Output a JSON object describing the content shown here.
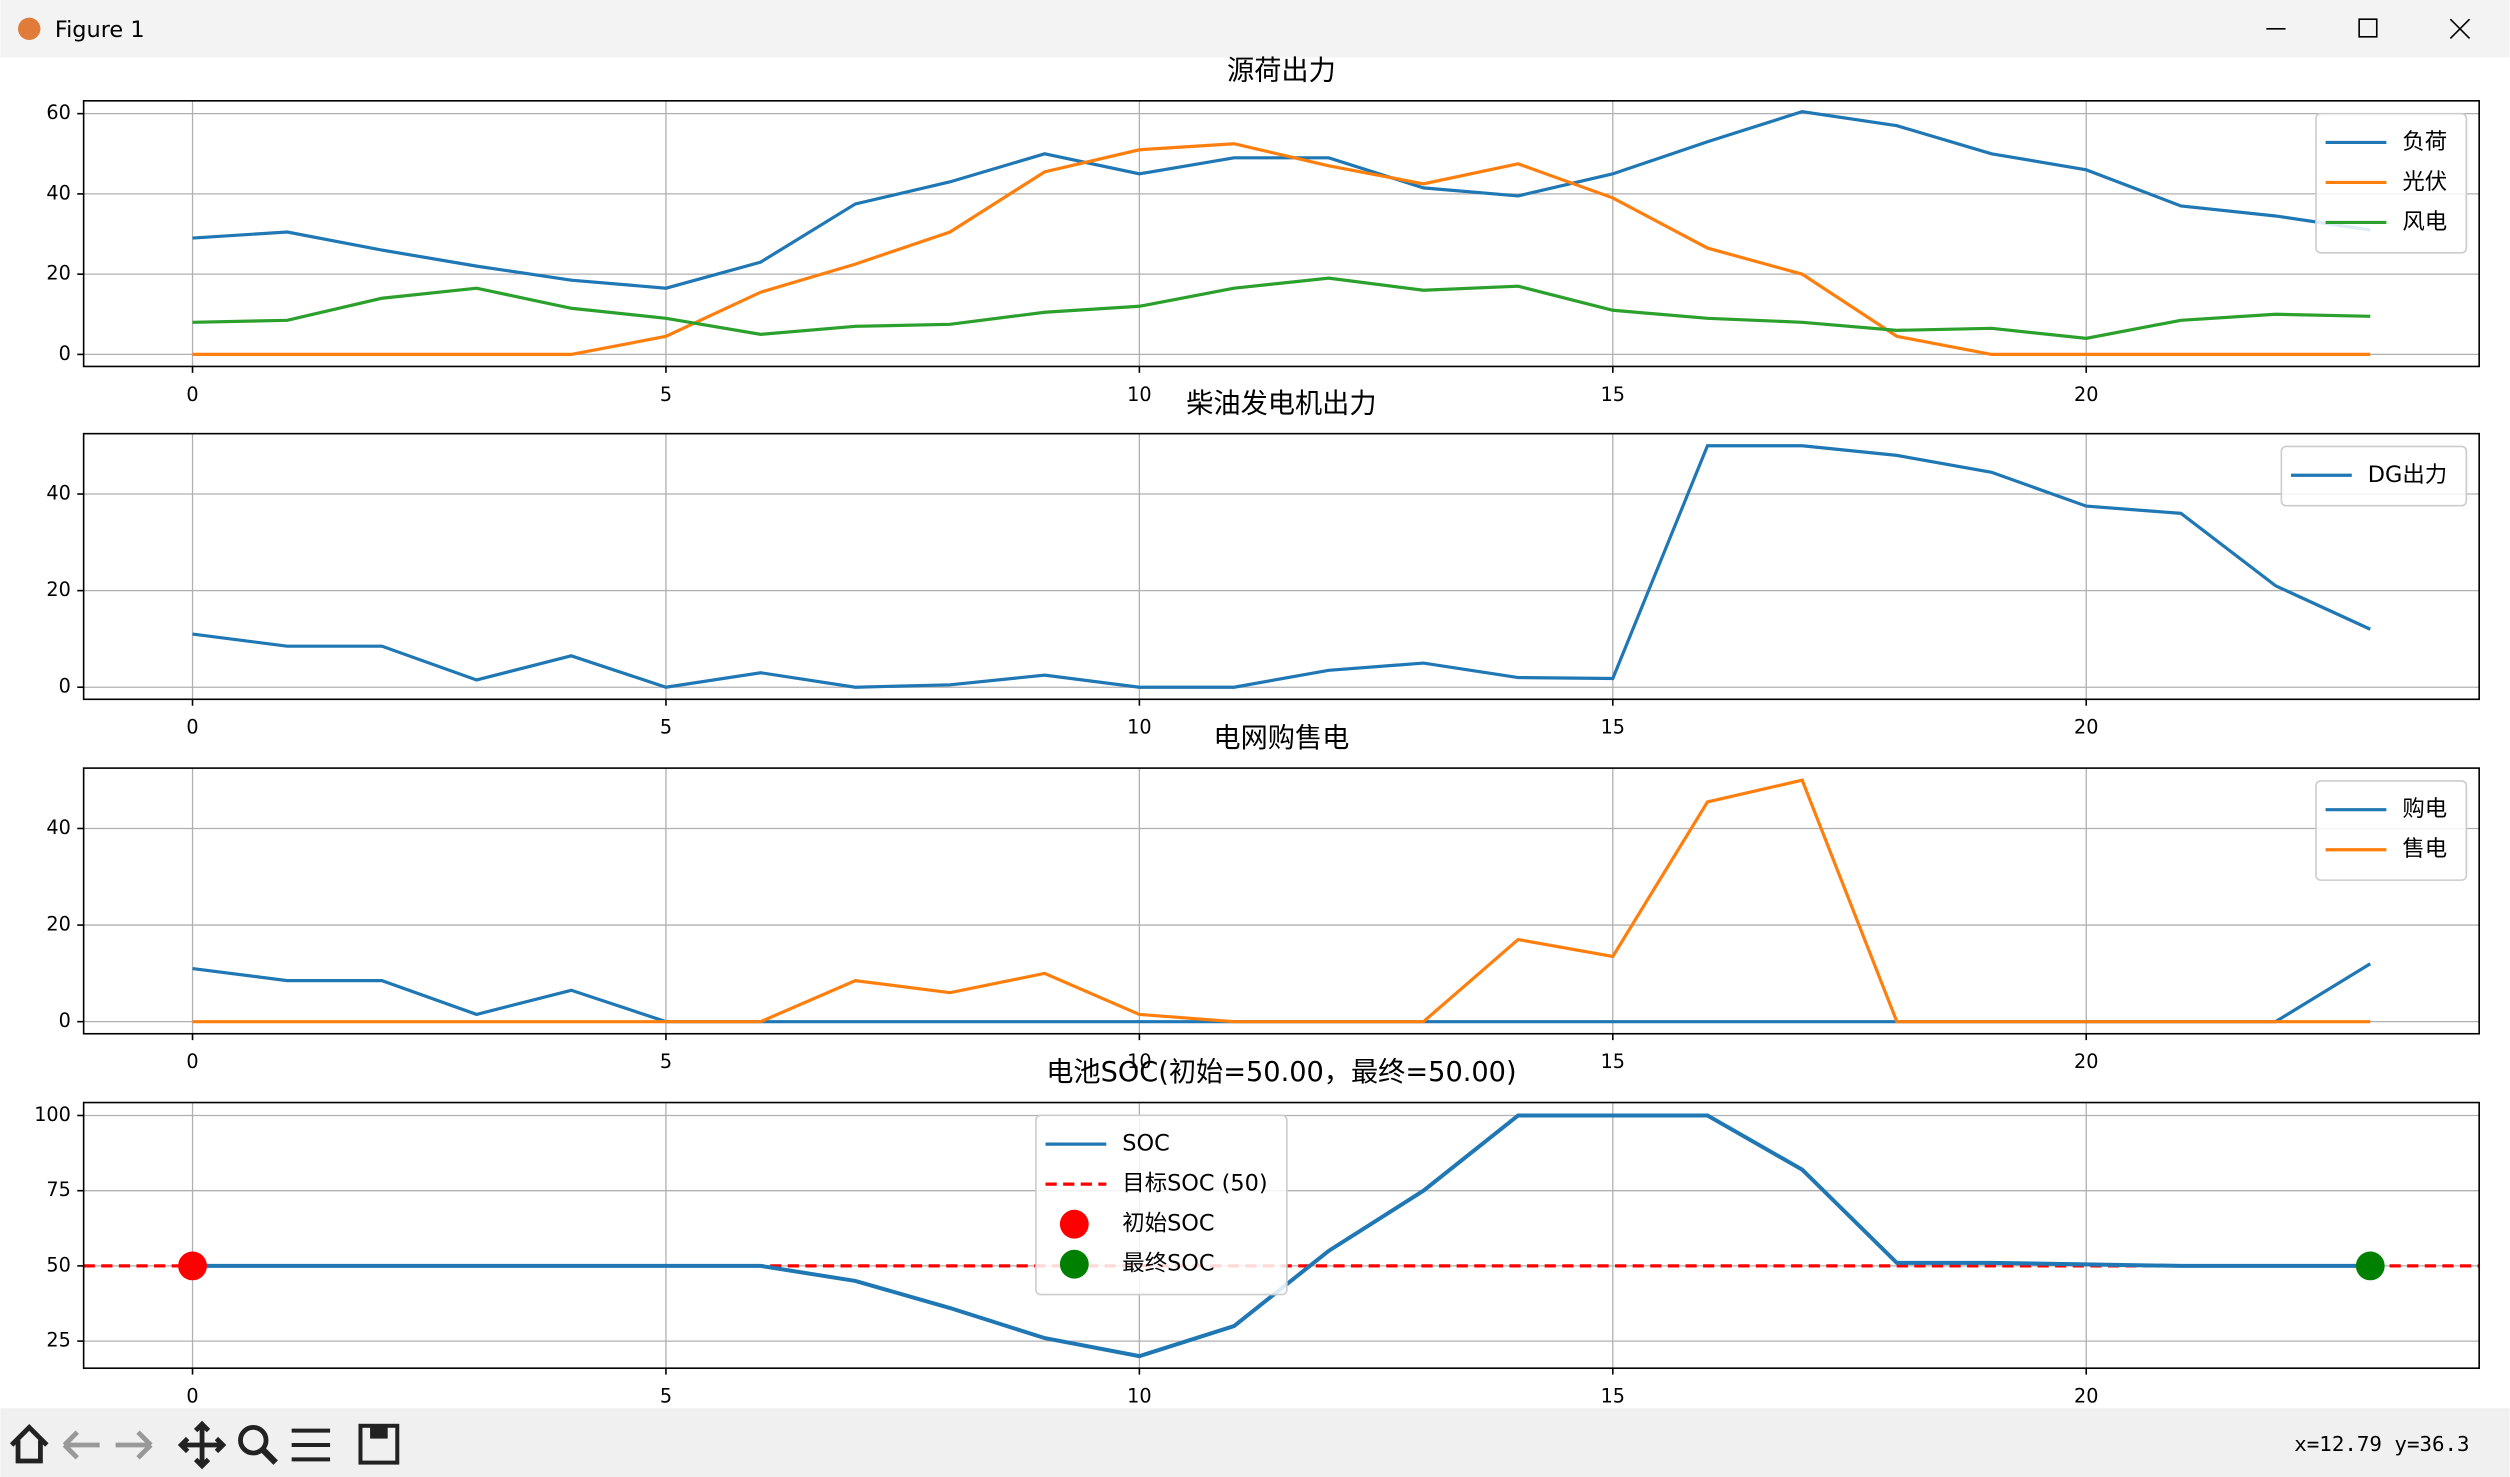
{
  "window": {
    "title": "Figure 1",
    "status": "x=12.79 y=36.3"
  },
  "chart_data": [
    {
      "type": "line",
      "title": "源荷出力",
      "legend": "upper right",
      "grid": true,
      "x": [
        0,
        1,
        2,
        3,
        4,
        5,
        6,
        7,
        8,
        9,
        10,
        11,
        12,
        13,
        14,
        15,
        16,
        17,
        18,
        19,
        20,
        21,
        22,
        23
      ],
      "xlim": [
        -1.15,
        24.15
      ],
      "xticks": [
        0,
        5,
        10,
        15,
        20
      ],
      "ylim": [
        -3,
        63.2
      ],
      "yticks": [
        0,
        20,
        40,
        60
      ],
      "series": [
        {
          "name": "负荷",
          "color": "#1f77b4",
          "values": [
            29,
            30.5,
            26,
            22,
            18.5,
            16.5,
            23,
            37.5,
            43,
            50,
            45,
            49,
            49,
            41.5,
            39.5,
            45,
            53,
            60.5,
            57,
            50,
            46,
            37,
            34.5,
            31
          ]
        },
        {
          "name": "光伏",
          "color": "#ff7f0e",
          "values": [
            0,
            0,
            0,
            0,
            0,
            4.5,
            15.5,
            22.5,
            30.5,
            45.5,
            51,
            52.5,
            47,
            42.5,
            47.5,
            39,
            26.5,
            20,
            4.5,
            0,
            0,
            0,
            0,
            0
          ]
        },
        {
          "name": "风电",
          "color": "#2ca02c",
          "values": [
            8,
            8.5,
            14,
            16.5,
            11.5,
            9,
            5,
            7,
            7.5,
            10.5,
            12,
            16.5,
            19,
            16,
            17,
            11,
            9,
            8,
            6,
            6.5,
            4,
            8.5,
            10,
            9.5
          ]
        }
      ]
    },
    {
      "type": "line",
      "title": "柴油发电机出力",
      "legend": "upper right",
      "grid": true,
      "x": [
        0,
        1,
        2,
        3,
        4,
        5,
        6,
        7,
        8,
        9,
        10,
        11,
        12,
        13,
        14,
        15,
        16,
        17,
        18,
        19,
        20,
        21,
        22,
        23
      ],
      "xlim": [
        -1.15,
        24.15
      ],
      "xticks": [
        0,
        5,
        10,
        15,
        20
      ],
      "ylim": [
        -2.5,
        52.5
      ],
      "yticks": [
        0,
        20,
        40
      ],
      "series": [
        {
          "name": "DG出力",
          "color": "#1f77b4",
          "values": [
            11,
            8.5,
            8.5,
            1.5,
            6.5,
            0,
            3,
            0,
            0.5,
            2.5,
            0,
            0,
            3.5,
            5,
            2,
            1.8,
            50,
            50,
            48,
            44.5,
            37.5,
            36,
            21,
            12
          ]
        }
      ]
    },
    {
      "type": "line",
      "title": "电网购售电",
      "legend": "upper right",
      "grid": true,
      "x": [
        0,
        1,
        2,
        3,
        4,
        5,
        6,
        7,
        8,
        9,
        10,
        11,
        12,
        13,
        14,
        15,
        16,
        17,
        18,
        19,
        20,
        21,
        22,
        23
      ],
      "xlim": [
        -1.15,
        24.15
      ],
      "xticks": [
        0,
        5,
        10,
        15,
        20
      ],
      "ylim": [
        -2.5,
        52.5
      ],
      "yticks": [
        0,
        20,
        40
      ],
      "series": [
        {
          "name": "购电",
          "color": "#1f77b4",
          "values": [
            11,
            8.5,
            8.5,
            1.5,
            6.5,
            0,
            0,
            0,
            0,
            0,
            0,
            0,
            0,
            0,
            0,
            0,
            0,
            0,
            0,
            0,
            0,
            0,
            0,
            12
          ]
        },
        {
          "name": "售电",
          "color": "#ff7f0e",
          "values": [
            0,
            0,
            0,
            0,
            0,
            0,
            0,
            8.5,
            6,
            10,
            1.5,
            0,
            0,
            0,
            17,
            13.5,
            45.5,
            50,
            0,
            0,
            0,
            0,
            0,
            0
          ]
        }
      ]
    },
    {
      "type": "line",
      "title": "电池SOC(初始=50.00，最终=50.00)",
      "legend": "upper center",
      "grid": true,
      "x": [
        0,
        1,
        2,
        3,
        4,
        5,
        6,
        7,
        8,
        9,
        10,
        11,
        12,
        13,
        14,
        15,
        16,
        17,
        18,
        19,
        20,
        21,
        22,
        23
      ],
      "xlim": [
        -1.15,
        24.15
      ],
      "xticks": [
        0,
        5,
        10,
        15,
        20
      ],
      "ylim": [
        16,
        104.3
      ],
      "yticks": [
        25,
        50,
        75,
        100
      ],
      "series": [
        {
          "name": "SOC",
          "color": "#1f77b4",
          "linewidth": 2.5,
          "values": [
            50,
            50,
            50,
            50,
            50,
            50,
            50,
            45,
            36,
            26,
            20,
            30,
            55,
            75,
            100,
            100,
            100,
            82,
            51,
            51,
            50.5,
            50,
            50,
            50
          ]
        }
      ],
      "hlines": [
        {
          "name": "目标SOC (50)",
          "color": "red",
          "linestyle": "dashed",
          "value": 50
        }
      ],
      "points": [
        {
          "name": "初始SOC",
          "color": "red",
          "x": 0,
          "y": 50
        },
        {
          "name": "最终SOC",
          "color": "green",
          "x": 23,
          "y": 50
        }
      ]
    }
  ]
}
